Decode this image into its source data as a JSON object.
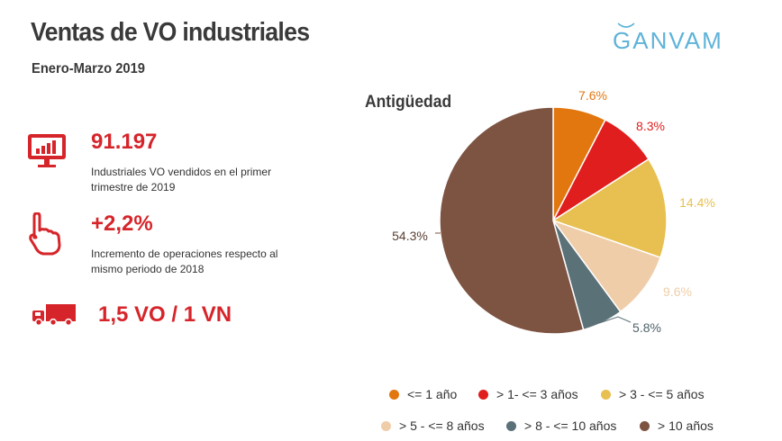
{
  "header": {
    "title": "Ventas de VO industriales",
    "subtitle": "Enero-Marzo 2019",
    "logo_text": "GANVAM"
  },
  "stats": [
    {
      "icon": "monitor-chart-icon",
      "value": "91.197",
      "desc_line1": "Industriales VO vendidos en el primer",
      "desc_line2": "trimestre de 2019"
    },
    {
      "icon": "pointing-hand-icon",
      "value": "+2,2%",
      "desc_line1": "Incremento de operaciones respecto al",
      "desc_line2": "mismo periodo de 2018"
    },
    {
      "icon": "truck-icon",
      "value": "1,5 VO / 1 VN"
    }
  ],
  "colors": {
    "accent_red": "#d6252a",
    "slices": [
      "#e2760f",
      "#e01e1e",
      "#e8c051",
      "#efcda9",
      "#5b7178",
      "#7d5341"
    ]
  },
  "chart_data": {
    "type": "pie",
    "title": "Antigüedad",
    "categories": [
      "<= 1 año",
      "> 1- <= 3 años",
      "> 3 - <= 5 años",
      "> 5 - <= 8 años",
      "> 8 - <= 10 años",
      "> 10 años"
    ],
    "values": [
      7.6,
      8.3,
      14.4,
      9.6,
      5.8,
      54.3
    ],
    "labels": [
      "7.6%",
      "8.3%",
      "14.4%",
      "9.6%",
      "5.8%",
      "54.3%"
    ],
    "legend": "bottom"
  }
}
